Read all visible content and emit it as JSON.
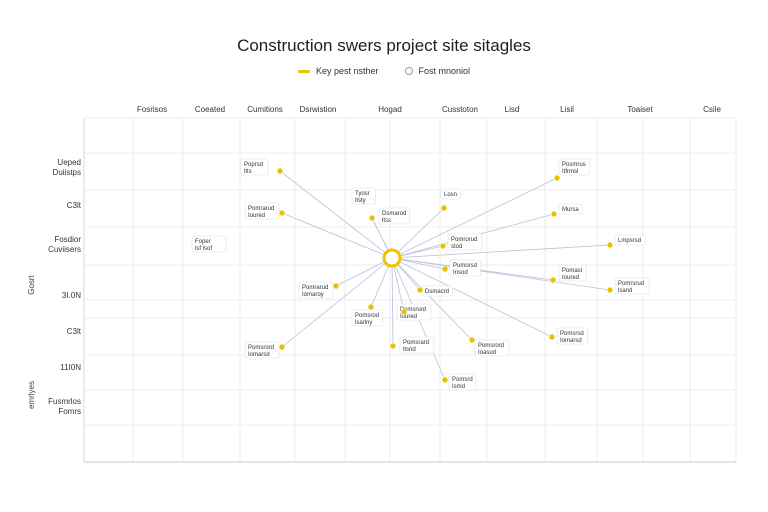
{
  "title": "Construction swers project site sitagles",
  "legend": [
    {
      "label": "Key pest nsther",
      "kind": "line",
      "color": "#e6c200"
    },
    {
      "label": "Fost mnoniol",
      "kind": "dot",
      "color": "#999999"
    }
  ],
  "columns": [
    "Fosrisos",
    "Coeated",
    "Cumitions",
    "Dsrwistion",
    "Hogad",
    "Cusstoton",
    "Lisd",
    "Lisil",
    "Toaiset",
    "Csile"
  ],
  "rows": [
    "Ueped Duiistps",
    "C3lt",
    "Fosdior Cuviisers",
    "3I.0N",
    "C3lt",
    "11I0N",
    "Fusmrlos Fomrs"
  ],
  "y_axis_title": "Gosrt emrlyes",
  "colors": {
    "accent": "#e6c200",
    "hub": "#f2c200",
    "spoke": "#b8c0dc",
    "grid": "#e8e8e8"
  },
  "hub": {
    "name": "hub"
  },
  "nodes": [
    {
      "label": "Poprsd ltts"
    },
    {
      "label": "Pomrarud Ioured"
    },
    {
      "label": "Tyosr ltsty"
    },
    {
      "label": "Dsmarod ltss"
    },
    {
      "label": "Losn"
    },
    {
      "label": "Pomrorud stod"
    },
    {
      "label": "Pumorsd Insod"
    },
    {
      "label": "Posmrus Itfrmsl"
    },
    {
      "label": "Mursa"
    },
    {
      "label": "Lmpsrsd"
    },
    {
      "label": "Pomasl Ioured"
    },
    {
      "label": "Pomrsrud lsand"
    },
    {
      "label": "Dsmacrd"
    },
    {
      "label": "Pomrarud Iomaroy"
    },
    {
      "label": "Pomsrod lsarlny"
    },
    {
      "label": "Dsmsrurd Ioured"
    },
    {
      "label": "Pomsrard ltsnd"
    },
    {
      "label": "Pomsrord Ioasud"
    },
    {
      "label": "Pomsrsd Iomarsd"
    },
    {
      "label": "Pomsrord Iomarsd"
    },
    {
      "label": "Pomsrd Ismd"
    },
    {
      "label": "Foper lsf lsof"
    }
  ]
}
